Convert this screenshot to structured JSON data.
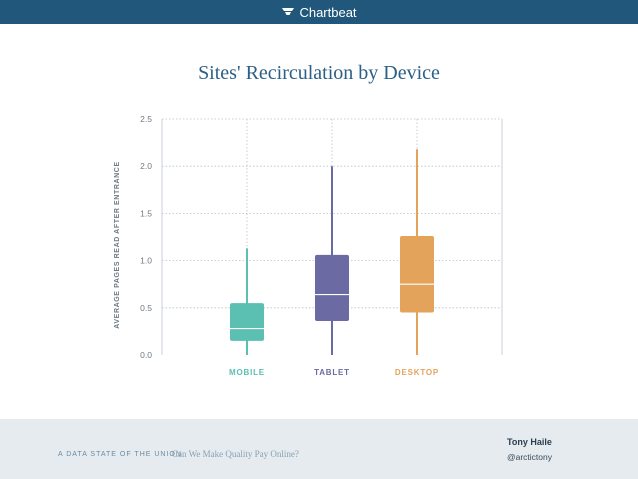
{
  "header": {
    "brand": "Chartbeat",
    "brand_icon": "chartbeat-logo-icon"
  },
  "chart_data": {
    "type": "box",
    "title": "Sites' Recirculation by Device",
    "ylabel": "AVERAGE PAGES READ AFTER ENTRANCE",
    "xlabel": "",
    "ylim": [
      0,
      2.5
    ],
    "yticks": [
      "0.0",
      "0.5",
      "1.0",
      "1.5",
      "2.0",
      "2.5"
    ],
    "grid": true,
    "categories": [
      "MOBILE",
      "TABLET",
      "DESKTOP"
    ],
    "boxes": [
      {
        "name": "MOBILE",
        "min": 0.0,
        "q1": 0.15,
        "median": 0.28,
        "q3": 0.55,
        "max": 1.13,
        "color": "#5bbfb2"
      },
      {
        "name": "TABLET",
        "min": 0.0,
        "q1": 0.36,
        "median": 0.64,
        "q3": 1.06,
        "max": 2.0,
        "color": "#6b6aa3"
      },
      {
        "name": "DESKTOP",
        "min": 0.0,
        "q1": 0.45,
        "median": 0.75,
        "q3": 1.26,
        "max": 2.18,
        "color": "#e3a35b"
      }
    ]
  },
  "footer": {
    "series_label": "A DATA STATE OF THE UNION",
    "subtitle": "Can We Make Quality Pay Online?",
    "author": "Tony Haile",
    "handle": "@arctictony"
  }
}
